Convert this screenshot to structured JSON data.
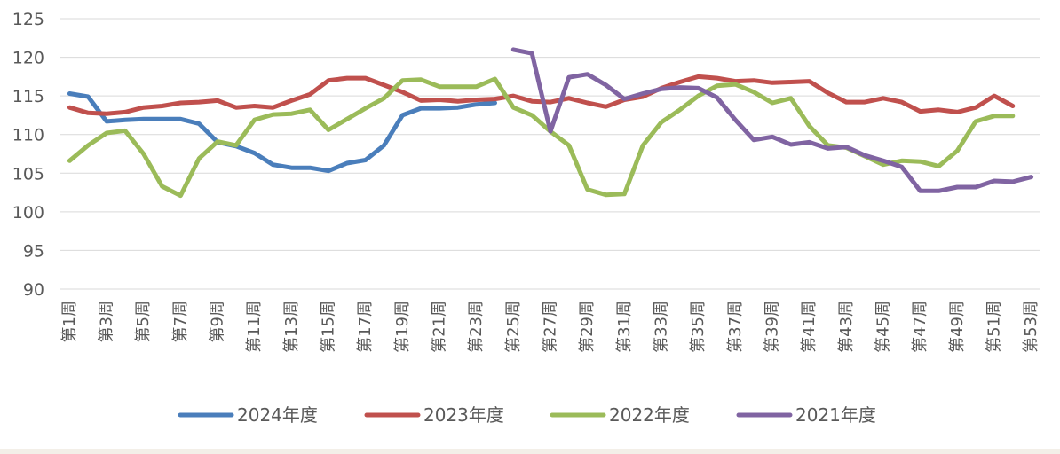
{
  "chart_data": {
    "type": "line",
    "categories": [
      "第1周",
      "第2周",
      "第3周",
      "第4周",
      "第5周",
      "第6周",
      "第7周",
      "第8周",
      "第9周",
      "第10周",
      "第11周",
      "第12周",
      "第13周",
      "第14周",
      "第15周",
      "第16周",
      "第17周",
      "第18周",
      "第19周",
      "第20周",
      "第21周",
      "第22周",
      "第23周",
      "第24周",
      "第25周",
      "第26周",
      "第27周",
      "第28周",
      "第29周",
      "第30周",
      "第31周",
      "第32周",
      "第33周",
      "第34周",
      "第35周",
      "第36周",
      "第37周",
      "第38周",
      "第39周",
      "第40周",
      "第41周",
      "第42周",
      "第43周",
      "第44周",
      "第45周",
      "第46周",
      "第47周",
      "第48周",
      "第49周",
      "第50周",
      "第51周",
      "第52周",
      "第53周"
    ],
    "tick_labels": [
      "第1周",
      "第3周",
      "第5周",
      "第7周",
      "第9周",
      "第11周",
      "第13周",
      "第15周",
      "第17周",
      "第19周",
      "第21周",
      "第23周",
      "第25周",
      "第27周",
      "第29周",
      "第31周",
      "第33周",
      "第35周",
      "第37周",
      "第39周",
      "第41周",
      "第43周",
      "第45周",
      "第47周",
      "第49周",
      "第51周",
      "第53周"
    ],
    "yticks": [
      "90",
      "95",
      "100",
      "105",
      "110",
      "115",
      "120",
      "125"
    ],
    "ylim": [
      90,
      125
    ],
    "grid": true,
    "legend_position": "bottom",
    "series": [
      {
        "name": "2024年度",
        "color": "#4a7ebb",
        "values": [
          115.3,
          114.9,
          111.7,
          111.9,
          112.0,
          112.0,
          112.0,
          111.4,
          109.0,
          108.5,
          107.6,
          106.1,
          105.7,
          105.7,
          105.3,
          106.3,
          106.7,
          108.6,
          112.5,
          113.4,
          113.4,
          113.5,
          113.9,
          114.1,
          null,
          null,
          null,
          null,
          null,
          null,
          null,
          null,
          null,
          null,
          null,
          null,
          null,
          null,
          null,
          null,
          null,
          null,
          null,
          null,
          null,
          null,
          null,
          null,
          null,
          null,
          null,
          null,
          null
        ]
      },
      {
        "name": "2023年度",
        "color": "#c0504d",
        "values": [
          113.5,
          112.8,
          112.7,
          112.9,
          113.5,
          113.7,
          114.1,
          114.2,
          114.4,
          113.5,
          113.7,
          113.5,
          114.4,
          115.2,
          117.0,
          117.3,
          117.3,
          116.4,
          115.5,
          114.4,
          114.5,
          114.3,
          114.5,
          114.6,
          115.0,
          114.3,
          114.2,
          114.7,
          114.1,
          113.6,
          114.5,
          114.9,
          116.0,
          116.8,
          117.5,
          117.3,
          116.9,
          117.0,
          116.7,
          116.8,
          116.9,
          115.4,
          114.2,
          114.2,
          114.7,
          114.2,
          113.0,
          113.2,
          112.9,
          113.5,
          115.0,
          113.7,
          null
        ]
      },
      {
        "name": "2022年度",
        "color": "#9bbb59",
        "values": [
          106.6,
          108.6,
          110.2,
          110.5,
          107.5,
          103.3,
          102.1,
          106.9,
          109.1,
          108.6,
          111.9,
          112.6,
          112.7,
          113.2,
          110.6,
          112.0,
          113.4,
          114.7,
          117.0,
          117.1,
          116.2,
          116.2,
          116.2,
          117.2,
          113.5,
          112.5,
          110.4,
          108.6,
          102.9,
          102.2,
          102.3,
          108.6,
          111.6,
          113.2,
          115.0,
          116.3,
          116.5,
          115.5,
          114.1,
          114.7,
          111.1,
          108.6,
          108.3,
          107.2,
          106.1,
          106.6,
          106.5,
          105.9,
          107.9,
          111.7,
          112.4,
          112.4,
          null
        ]
      },
      {
        "name": "2021年度",
        "color": "#8064a2",
        "values": [
          null,
          null,
          null,
          null,
          null,
          null,
          null,
          null,
          null,
          null,
          null,
          null,
          null,
          null,
          null,
          null,
          null,
          null,
          null,
          null,
          null,
          null,
          null,
          null,
          121.0,
          120.5,
          110.4,
          117.4,
          117.8,
          116.4,
          114.6,
          115.3,
          115.9,
          116.1,
          116.0,
          114.8,
          111.9,
          109.3,
          109.7,
          108.7,
          109.0,
          108.2,
          108.4,
          107.3,
          106.6,
          105.8,
          102.7,
          102.7,
          103.2,
          103.2,
          104.0,
          103.9,
          104.5
        ]
      }
    ]
  }
}
